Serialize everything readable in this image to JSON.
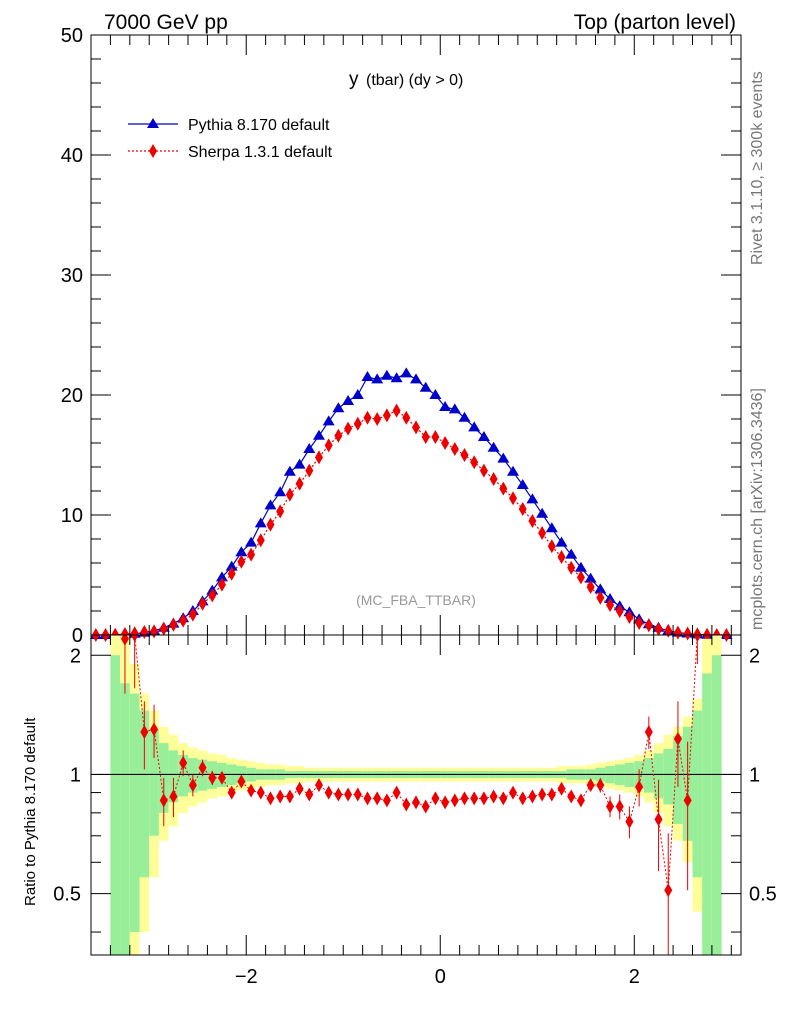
{
  "header": {
    "left": "7000 GeV pp",
    "right": "Top (parton level)"
  },
  "side_labels": {
    "rivet": "Rivet 3.1.10, ≥ 300k events",
    "mcplots": "mcplots.cern.ch [arXiv:1306.3436]"
  },
  "chart_data": {
    "type": "line",
    "title": "y (tbar) (dy > 0)",
    "title_main": "y",
    "title_rest": "(tbar) (dy > 0)",
    "analysis_tag": "(MC_FBA_TTBAR)",
    "xlim": [
      -3.6,
      3.1
    ],
    "ylim": [
      0,
      50
    ],
    "ratio_ylim": [
      0.35,
      2.25
    ],
    "ratio_ylabel": "Ratio to Pythia 8.170 default",
    "xticks": [
      "−2",
      "0",
      "2"
    ],
    "xtick_values": [
      -2,
      0,
      2
    ],
    "yticks": [
      "0",
      "10",
      "20",
      "30",
      "40",
      "50"
    ],
    "ytick_values": [
      0,
      10,
      20,
      30,
      40,
      50
    ],
    "ratio_yticks": [
      "0.5",
      "1",
      "2"
    ],
    "ratio_ytick_values": [
      0.5,
      1,
      2
    ],
    "bin_width": 0.1,
    "x": [
      -3.55,
      -3.45,
      -3.35,
      -3.25,
      -3.15,
      -3.05,
      -2.95,
      -2.85,
      -2.75,
      -2.65,
      -2.55,
      -2.45,
      -2.35,
      -2.25,
      -2.15,
      -2.05,
      -1.95,
      -1.85,
      -1.75,
      -1.65,
      -1.55,
      -1.45,
      -1.35,
      -1.25,
      -1.15,
      -1.05,
      -0.95,
      -0.85,
      -0.75,
      -0.65,
      -0.55,
      -0.45,
      -0.35,
      -0.25,
      -0.15,
      -0.05,
      0.05,
      0.15,
      0.25,
      0.35,
      0.45,
      0.55,
      0.65,
      0.75,
      0.85,
      0.95,
      1.05,
      1.15,
      1.25,
      1.35,
      1.45,
      1.55,
      1.65,
      1.75,
      1.85,
      1.95,
      2.05,
      2.15,
      2.25,
      2.35,
      2.45,
      2.55,
      2.65,
      2.75,
      2.85,
      2.95
    ],
    "series": [
      {
        "name": "Pythia 8.170 default",
        "color": "#0000cc",
        "marker": "triangle",
        "line": "solid",
        "values": [
          0,
          0,
          0.02,
          0.05,
          0.1,
          0.2,
          0.35,
          0.6,
          0.95,
          1.4,
          2.0,
          2.8,
          3.7,
          4.8,
          5.7,
          6.9,
          7.7,
          9.3,
          10.8,
          11.9,
          13.6,
          14.2,
          15.5,
          16.6,
          17.8,
          18.9,
          19.5,
          20.0,
          21.5,
          21.3,
          21.6,
          21.4,
          21.8,
          21.3,
          20.6,
          20.0,
          19.0,
          18.8,
          18.1,
          17.3,
          16.5,
          15.6,
          14.7,
          13.6,
          12.5,
          11.3,
          10.1,
          8.9,
          7.7,
          6.7,
          5.6,
          4.7,
          3.8,
          3.0,
          2.4,
          1.9,
          1.3,
          0.9,
          0.6,
          0.35,
          0.2,
          0.12,
          0.05,
          0.02,
          0,
          0
        ]
      },
      {
        "name": "Sherpa 1.3.1 default",
        "color": "#ee0000",
        "marker": "diamond",
        "line": "dotted",
        "values": [
          0,
          0,
          0.02,
          0.08,
          0.15,
          0.25,
          0.3,
          0.52,
          0.85,
          1.2,
          1.7,
          2.6,
          3.3,
          4.2,
          5.1,
          6.1,
          6.7,
          7.9,
          9.2,
          10.3,
          11.7,
          12.6,
          13.7,
          14.8,
          15.8,
          16.6,
          17.2,
          17.6,
          18.1,
          18.0,
          18.3,
          18.7,
          18.1,
          17.3,
          16.5,
          16.5,
          16.0,
          15.5,
          15.0,
          14.4,
          13.7,
          13.0,
          12.2,
          11.4,
          10.5,
          9.5,
          8.5,
          7.4,
          6.5,
          5.6,
          4.8,
          4.0,
          3.1,
          2.5,
          2.0,
          1.5,
          1.0,
          0.8,
          0.5,
          0.35,
          0.2,
          0.12,
          0.05,
          0.02,
          0,
          0
        ]
      }
    ],
    "ratio": [
      null,
      null,
      null,
      2.2,
      2.25,
      1.28,
      1.3,
      0.86,
      0.88,
      1.07,
      0.94,
      1.04,
      0.98,
      0.98,
      0.9,
      0.96,
      0.91,
      0.9,
      0.87,
      0.88,
      0.88,
      0.92,
      0.89,
      0.94,
      0.9,
      0.89,
      0.89,
      0.89,
      0.87,
      0.87,
      0.86,
      0.9,
      0.84,
      0.85,
      0.83,
      0.87,
      0.85,
      0.86,
      0.87,
      0.87,
      0.87,
      0.88,
      0.87,
      0.9,
      0.87,
      0.88,
      0.89,
      0.89,
      0.92,
      0.88,
      0.86,
      0.94,
      0.94,
      0.83,
      0.83,
      0.76,
      0.93,
      1.28,
      0.77,
      0.51,
      1.23,
      0.86,
      2.3,
      null,
      null,
      null
    ],
    "ratio_err": [
      0,
      0,
      0,
      0.6,
      0.6,
      0.25,
      0.2,
      0.12,
      0.1,
      0.08,
      0.06,
      0.05,
      0.04,
      0.03,
      0.03,
      0.03,
      0.02,
      0.02,
      0.02,
      0.02,
      0.02,
      0.02,
      0.02,
      0.02,
      0.02,
      0.02,
      0.02,
      0.02,
      0.02,
      0.02,
      0.02,
      0.02,
      0.02,
      0.02,
      0.02,
      0.02,
      0.02,
      0.02,
      0.02,
      0.02,
      0.02,
      0.02,
      0.02,
      0.02,
      0.02,
      0.02,
      0.02,
      0.02,
      0.02,
      0.02,
      0.03,
      0.03,
      0.04,
      0.05,
      0.06,
      0.07,
      0.1,
      0.12,
      0.2,
      0.2,
      0.3,
      0.35,
      0.4,
      0,
      0,
      0
    ],
    "band_inner": [
      0,
      0,
      1.0,
      0.7,
      0.6,
      0.45,
      0.3,
      0.2,
      0.15,
      0.12,
      0.1,
      0.09,
      0.08,
      0.07,
      0.06,
      0.05,
      0.04,
      0.03,
      0.03,
      0.03,
      0.02,
      0.02,
      0.02,
      0.02,
      0.02,
      0.02,
      0.02,
      0.02,
      0.02,
      0.02,
      0.02,
      0.02,
      0.02,
      0.02,
      0.02,
      0.02,
      0.02,
      0.02,
      0.02,
      0.02,
      0.02,
      0.02,
      0.02,
      0.02,
      0.02,
      0.02,
      0.02,
      0.02,
      0.02,
      0.03,
      0.03,
      0.03,
      0.04,
      0.05,
      0.06,
      0.07,
      0.08,
      0.1,
      0.13,
      0.16,
      0.25,
      0.32,
      0.45,
      0.8,
      1.0,
      0
    ],
    "band_outer": [
      0,
      0,
      1.6,
      1.4,
      0.9,
      0.6,
      0.45,
      0.32,
      0.26,
      0.2,
      0.17,
      0.15,
      0.13,
      0.12,
      0.1,
      0.09,
      0.08,
      0.07,
      0.06,
      0.06,
      0.05,
      0.05,
      0.04,
      0.04,
      0.04,
      0.04,
      0.04,
      0.04,
      0.04,
      0.04,
      0.04,
      0.04,
      0.04,
      0.04,
      0.04,
      0.04,
      0.04,
      0.04,
      0.04,
      0.04,
      0.04,
      0.04,
      0.04,
      0.04,
      0.04,
      0.04,
      0.04,
      0.04,
      0.05,
      0.05,
      0.05,
      0.06,
      0.07,
      0.08,
      0.09,
      0.1,
      0.12,
      0.15,
      0.2,
      0.26,
      0.32,
      0.4,
      0.55,
      1.2,
      1.6,
      0
    ],
    "colors": {
      "band_inner": "#99ee99",
      "band_outer": "#ffff99",
      "tag": "#999999",
      "side_text": "#777777"
    }
  }
}
